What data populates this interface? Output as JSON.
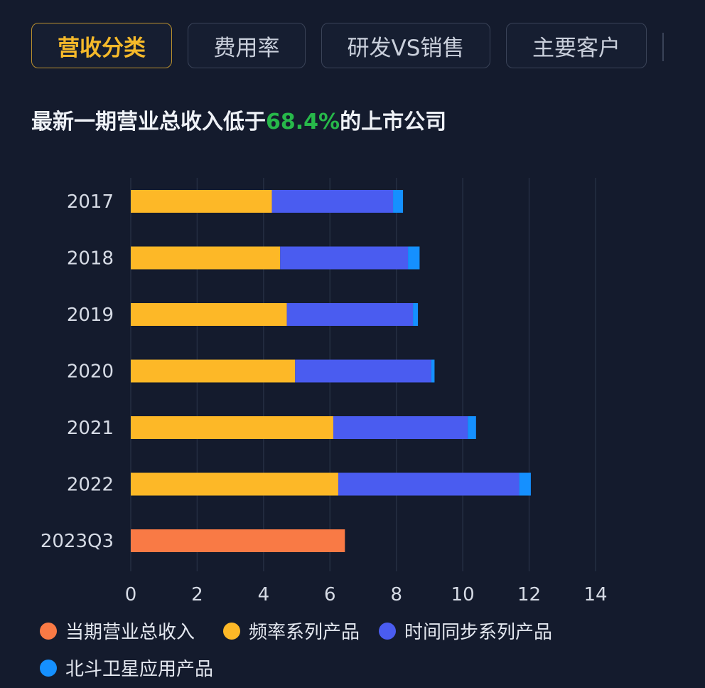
{
  "tabs": [
    {
      "label": "营收分类",
      "active": true
    },
    {
      "label": "费用率",
      "active": false
    },
    {
      "label": "研发VS销售",
      "active": false
    },
    {
      "label": "主要客户",
      "active": false
    }
  ],
  "headline": {
    "prefix": "最新一期营业总收入低于",
    "highlight": "68.4%",
    "suffix": "的上市公司"
  },
  "chart_data": {
    "type": "bar",
    "orientation": "horizontal",
    "stacked": true,
    "categories": [
      "2017",
      "2018",
      "2019",
      "2020",
      "2021",
      "2022",
      "2023Q3"
    ],
    "series": [
      {
        "name": "当期营业总收入",
        "color": "#f97a45",
        "values": [
          null,
          null,
          null,
          null,
          null,
          null,
          6.45
        ]
      },
      {
        "name": "频率系列产品",
        "color": "#fdb827",
        "values": [
          4.25,
          4.5,
          4.7,
          4.95,
          6.1,
          6.25,
          null
        ]
      },
      {
        "name": "时间同步系列产品",
        "color": "#4a5cf0",
        "values": [
          3.65,
          3.85,
          3.8,
          4.1,
          4.05,
          5.45,
          null
        ]
      },
      {
        "name": "北斗卫星应用产品",
        "color": "#1590ff",
        "values": [
          0.3,
          0.35,
          0.15,
          0.1,
          0.25,
          0.35,
          null
        ]
      }
    ],
    "xlim": [
      0,
      14
    ],
    "xticks": [
      "0",
      "2",
      "4",
      "6",
      "8",
      "10",
      "12",
      "14"
    ],
    "grid": true,
    "legend_position": "bottom"
  }
}
